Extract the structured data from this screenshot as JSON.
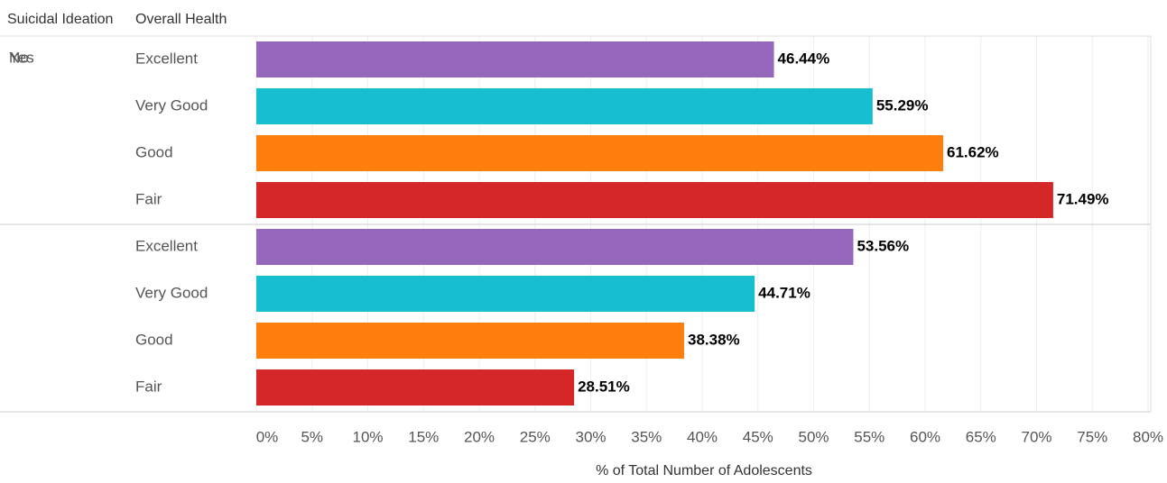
{
  "chart_data": {
    "type": "bar",
    "orientation": "horizontal",
    "row_headers": [
      "Suicidal Ideation",
      "Overall Health"
    ],
    "groups": [
      {
        "name": "Yes",
        "categories": [
          "Excellent",
          "Very Good",
          "Good",
          "Fair"
        ],
        "values": [
          46.44,
          55.29,
          61.62,
          71.49
        ],
        "value_labels": [
          "46.44%",
          "55.29%",
          "61.62%",
          "71.49%"
        ]
      },
      {
        "name": "No",
        "categories": [
          "Excellent",
          "Very Good",
          "Good",
          "Fair"
        ],
        "values": [
          53.56,
          44.71,
          38.38,
          28.51
        ],
        "value_labels": [
          "53.56%",
          "44.71%",
          "38.38%",
          "28.51%"
        ]
      }
    ],
    "colors": [
      "#9467bd",
      "#17becf",
      "#ff7f0e",
      "#d62728"
    ],
    "x_label": "% of Total Number of Adolescents",
    "xlim": [
      0,
      80
    ],
    "xticks": [
      {
        "value": 0,
        "label": "0%"
      },
      {
        "value": 5,
        "label": "5%"
      },
      {
        "value": 10,
        "label": "10%"
      },
      {
        "value": 15,
        "label": "15%"
      },
      {
        "value": 20,
        "label": "20%"
      },
      {
        "value": 25,
        "label": "25%"
      },
      {
        "value": 30,
        "label": "30%"
      },
      {
        "value": 35,
        "label": "35%"
      },
      {
        "value": 40,
        "label": "40%"
      },
      {
        "value": 45,
        "label": "45%"
      },
      {
        "value": 50,
        "label": "50%"
      },
      {
        "value": 55,
        "label": "55%"
      },
      {
        "value": 60,
        "label": "60%"
      },
      {
        "value": 65,
        "label": "65%"
      },
      {
        "value": 70,
        "label": "70%"
      },
      {
        "value": 75,
        "label": "75%"
      },
      {
        "value": 80,
        "label": "80%"
      }
    ],
    "grid": true
  }
}
